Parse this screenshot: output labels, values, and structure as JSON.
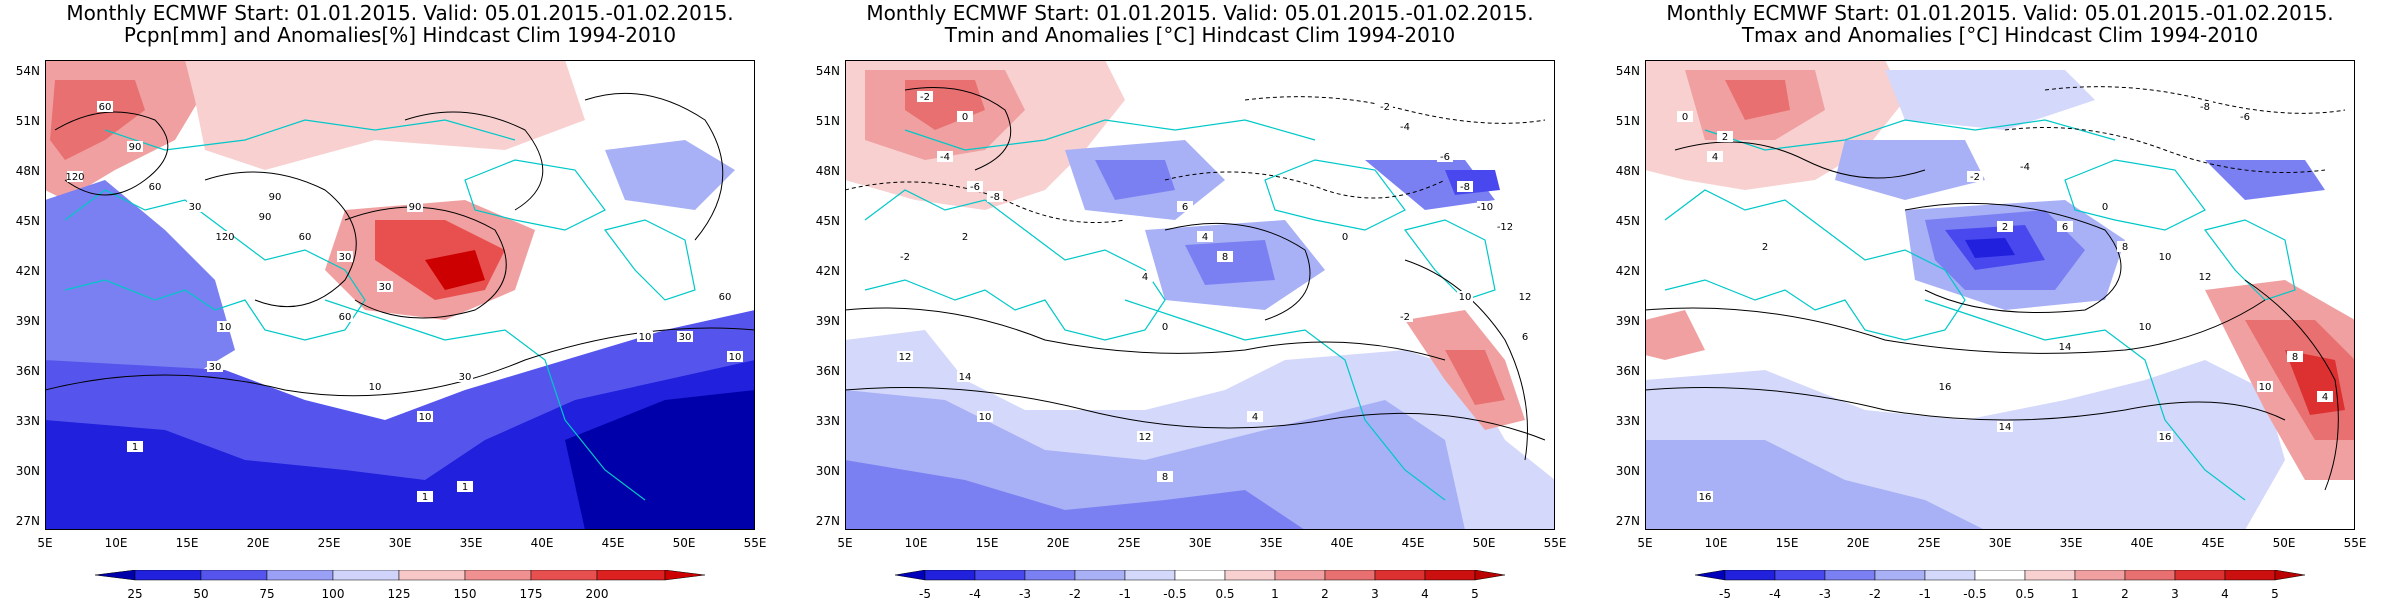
{
  "panels": [
    {
      "title1": "Monthly ECMWF Start: 01.01.2015. Valid: 05.01.2015.-01.02.2015.",
      "title2": "Pcpn[mm] and Anomalies[%] Hindcast Clim 1994-2010",
      "colorbar_ticks": [
        "25",
        "50",
        "75",
        "100",
        "125",
        "150",
        "175",
        "200"
      ],
      "colors": [
        "#0000aa",
        "#2020dd",
        "#5555ee",
        "#9aa0f5",
        "#d0d4fa",
        "#ffffff",
        "#f8c8c8",
        "#f09090",
        "#e85050",
        "#cc0000"
      ],
      "contour_labels": [
        "60",
        "90",
        "120",
        "60",
        "30",
        "90",
        "120",
        "90",
        "60",
        "30",
        "30",
        "90",
        "60",
        "10",
        "10",
        "30",
        "30",
        "10",
        "1",
        "1",
        "1",
        "10",
        "30",
        "10",
        "60"
      ]
    },
    {
      "title1": "Monthly ECMWF Start: 01.01.2015. Valid: 05.01.2015.-01.02.2015.",
      "title2": "Tmin and Anomalies [°C] Hindcast Clim 1994-2010",
      "colorbar_ticks": [
        "-5",
        "-4",
        "-3",
        "-2",
        "-1",
        "-0.5",
        "0.5",
        "1",
        "2",
        "3",
        "4",
        "5"
      ],
      "colors": [
        "#0000bb",
        "#2020dd",
        "#4848ee",
        "#7a80f2",
        "#a8b0f6",
        "#d4d8fb",
        "#ffffff",
        "#f8d0d0",
        "#f0a0a0",
        "#e87070",
        "#dd3030",
        "#bb0000"
      ],
      "contour_labels": [
        "-2",
        "0",
        "-4",
        "-6",
        "-8",
        "-2",
        "-4",
        "-6",
        "-8",
        "-10",
        "-12",
        "2",
        "-2",
        "6",
        "4",
        "12",
        "8",
        "4",
        "0",
        "14",
        "10",
        "12",
        "8",
        "4",
        "-2",
        "10",
        "12",
        "6",
        "0"
      ]
    },
    {
      "title1": "Monthly ECMWF Start: 01.01.2015. Valid: 05.01.2015.-01.02.2015.",
      "title2": "Tmax and Anomalies [°C] Hindcast Clim 1994-2010",
      "colorbar_ticks": [
        "-5",
        "-4",
        "-3",
        "-2",
        "-1",
        "-0.5",
        "0.5",
        "1",
        "2",
        "3",
        "4",
        "5"
      ],
      "colors": [
        "#0000bb",
        "#2020dd",
        "#4848ee",
        "#7a80f2",
        "#a8b0f6",
        "#d4d8fb",
        "#ffffff",
        "#f8d0d0",
        "#f0a0a0",
        "#e87070",
        "#dd3030",
        "#bb0000"
      ],
      "contour_labels": [
        "0",
        "2",
        "4",
        "-2",
        "-4",
        "-6",
        "-8",
        "2",
        "6",
        "8",
        "10",
        "12",
        "0",
        "2",
        "10",
        "14",
        "16",
        "14",
        "16",
        "10",
        "8",
        "4",
        "16"
      ]
    }
  ],
  "lat_labels": [
    "54N",
    "51N",
    "48N",
    "45N",
    "42N",
    "39N",
    "36N",
    "33N",
    "30N",
    "27N"
  ],
  "lon_labels": [
    "5E",
    "10E",
    "15E",
    "20E",
    "25E",
    "30E",
    "35E",
    "40E",
    "45E",
    "50E",
    "55E"
  ],
  "line_colors": {
    "coast": "#00c8c8",
    "contour": "#000000"
  }
}
